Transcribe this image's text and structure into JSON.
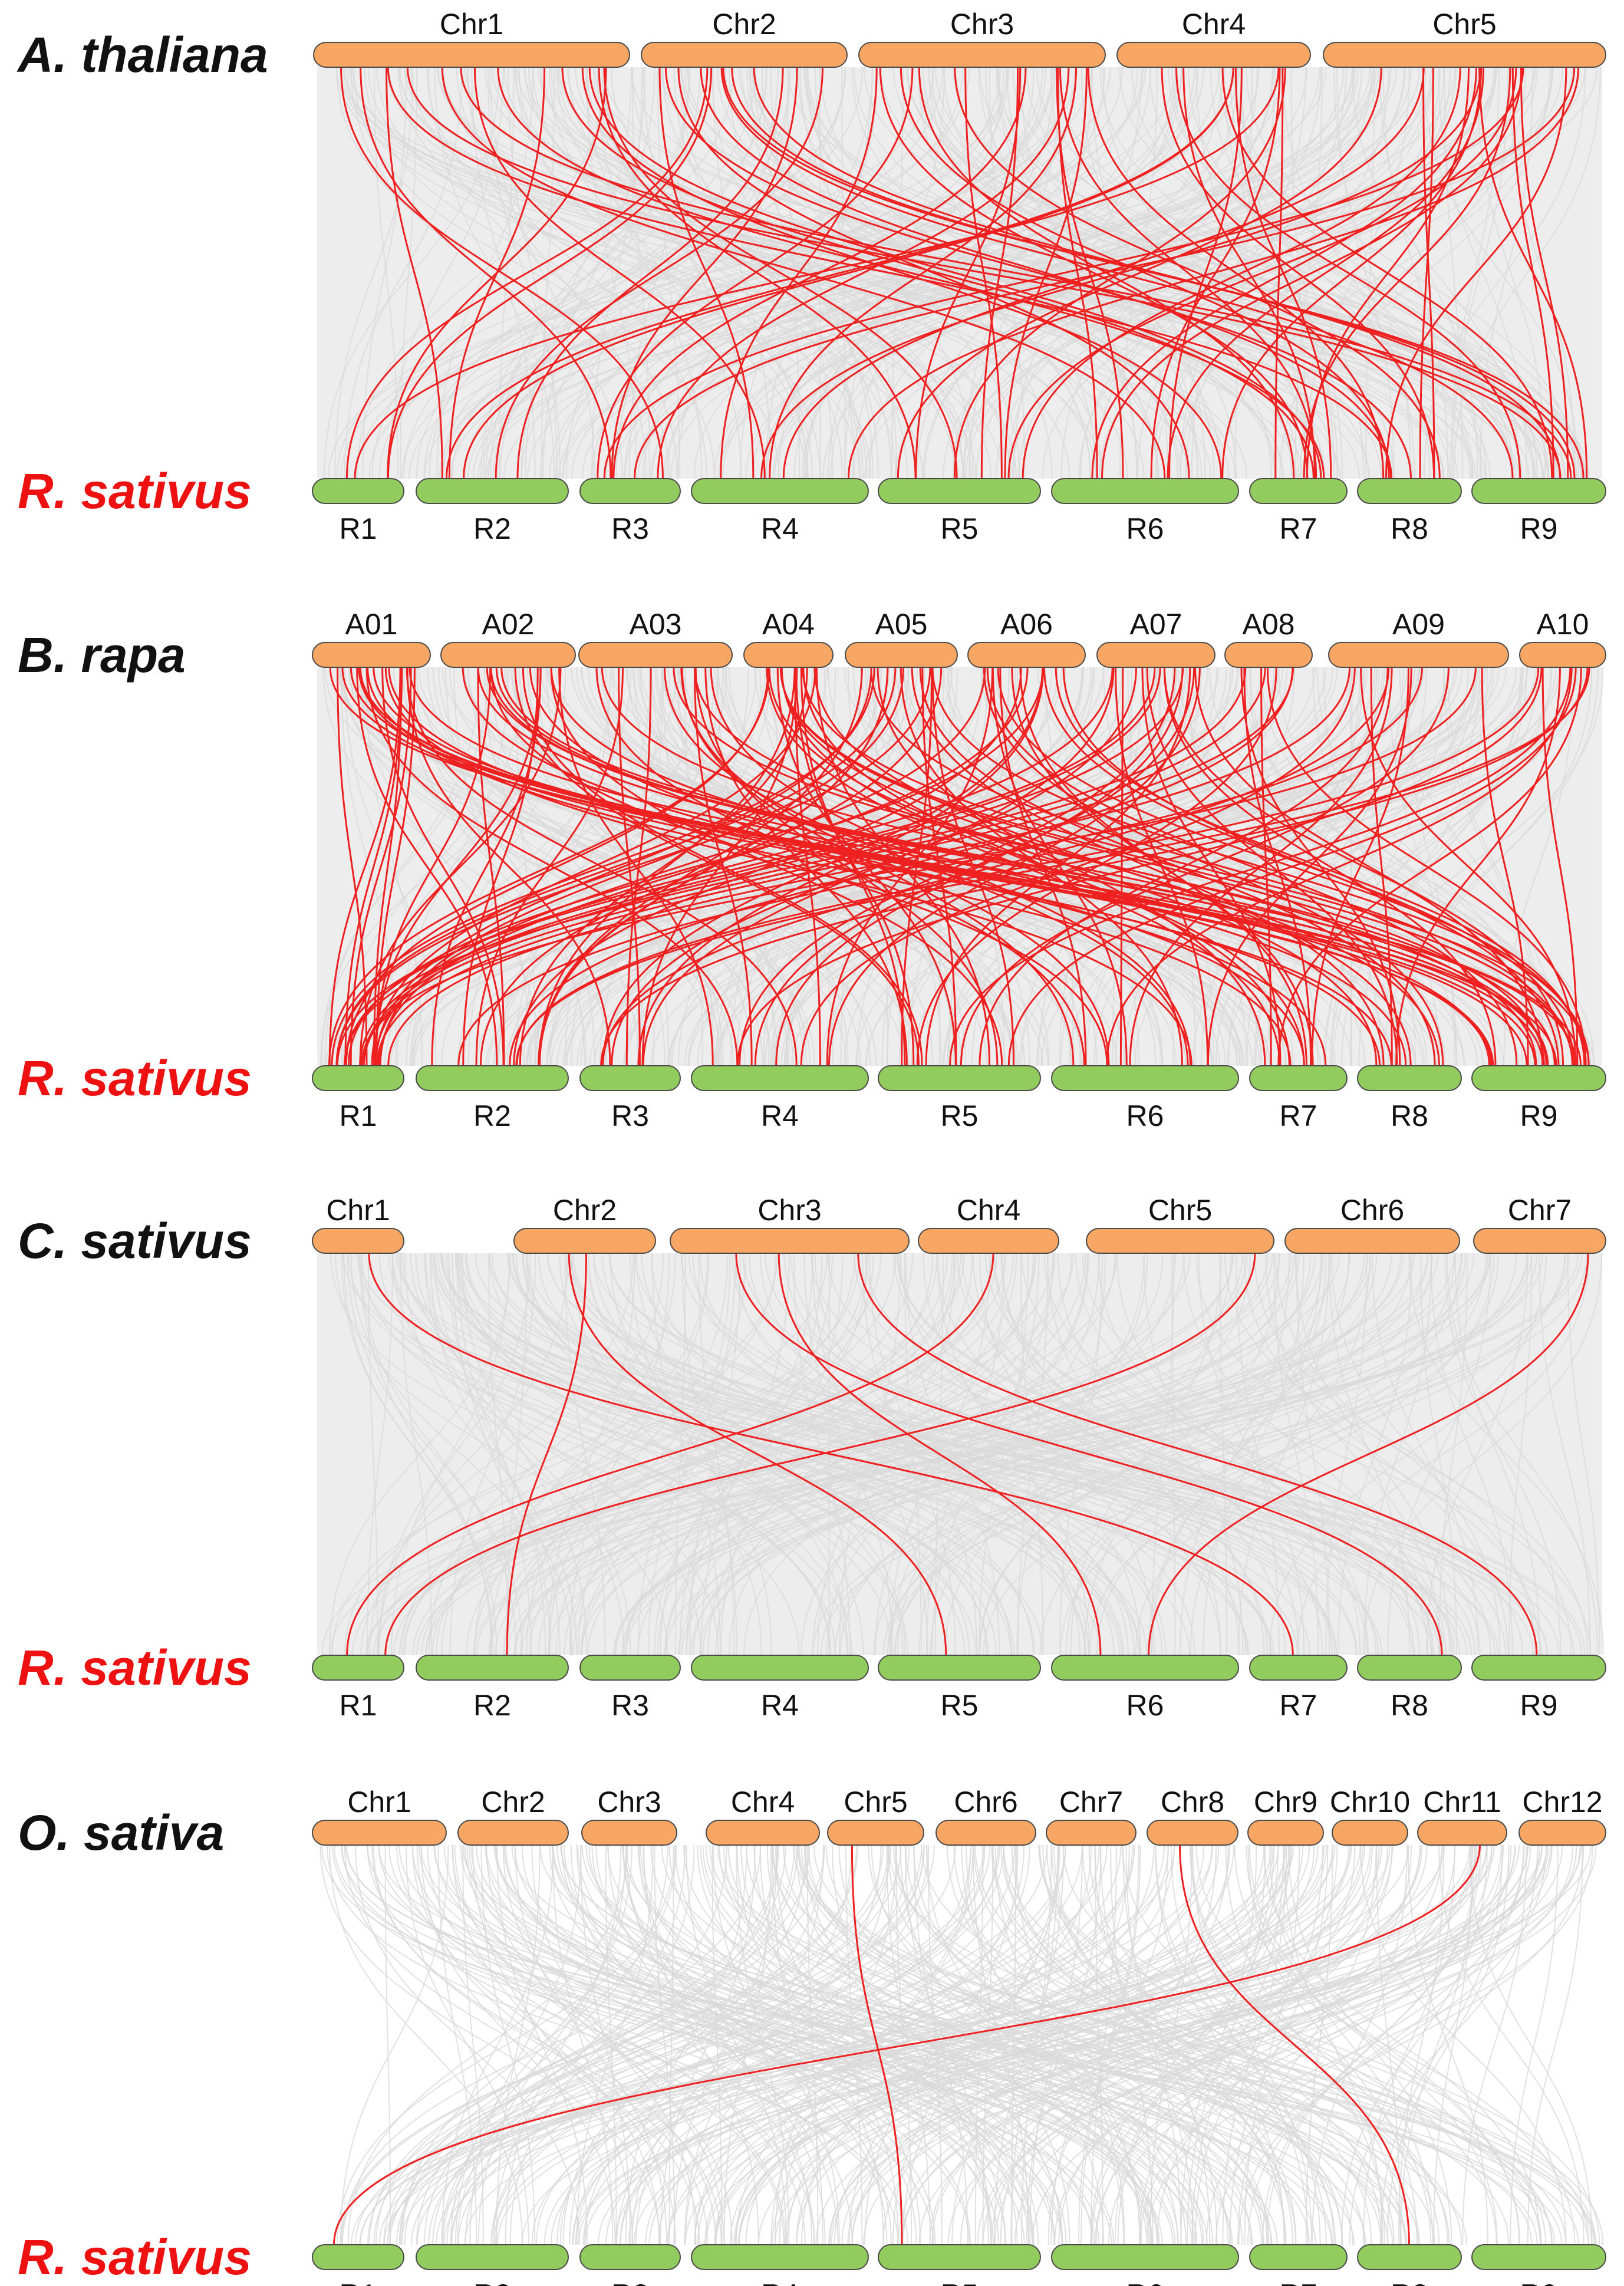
{
  "colors": {
    "top_chromosome": "#F7A763",
    "bottom_chromosome": "#92CC5E",
    "chromosome_border": "#4a4a4a",
    "background_link": "#d9d9d9",
    "highlight_link": "#ee2020",
    "query_label": "#111111",
    "target_label": "#ee1111"
  },
  "target_chromosomes": [
    "R1",
    "R2",
    "R3",
    "R4",
    "R5",
    "R6",
    "R7",
    "R8",
    "R9"
  ],
  "panels": [
    {
      "species": "A. thaliana",
      "target_species": "R. sativus",
      "chromosomes": [
        "Chr1",
        "Chr2",
        "Chr3",
        "Chr4",
        "Chr5"
      ],
      "highlight_link_count": 78,
      "background_density": "dense"
    },
    {
      "species": "B. rapa",
      "target_species": "R. sativus",
      "chromosomes": [
        "A01",
        "A02",
        "A03",
        "A04",
        "A05",
        "A06",
        "A07",
        "A08",
        "A09",
        "A10"
      ],
      "highlight_link_count": 160,
      "background_density": "dense"
    },
    {
      "species": "C. sativus",
      "target_species": "R. sativus",
      "chromosomes": [
        "Chr1",
        "Chr2",
        "Chr3",
        "Chr4",
        "Chr5",
        "Chr6",
        "Chr7"
      ],
      "highlight_link_count": 9,
      "background_density": "dense"
    },
    {
      "species": "O. sativa",
      "target_species": "R. sativus",
      "chromosomes": [
        "Chr1",
        "Chr2",
        "Chr3",
        "Chr4",
        "Chr5",
        "Chr6",
        "Chr7",
        "Chr8",
        "Chr9",
        "Chr10",
        "Chr11",
        "Chr12"
      ],
      "highlight_link_count": 3,
      "background_density": "sparse"
    }
  ]
}
